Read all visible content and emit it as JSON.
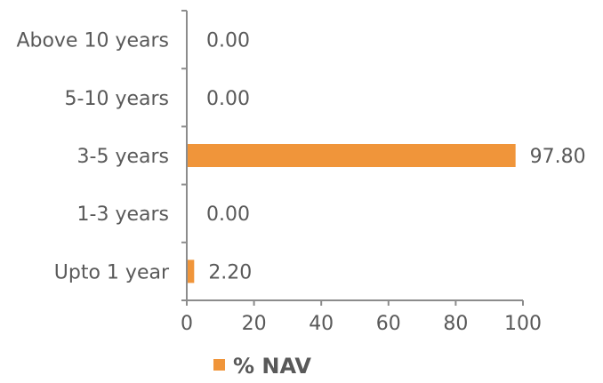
{
  "chart_data": {
    "type": "bar",
    "orientation": "horizontal",
    "categories": [
      "Above 10 years",
      "5-10 years",
      "3-5 years",
      "1-3 years",
      "Upto 1 year"
    ],
    "series": [
      {
        "name": "% NAV",
        "values": [
          0.0,
          0.0,
          97.8,
          0.0,
          2.2
        ],
        "value_labels": [
          "0.00",
          "0.00",
          "97.80",
          "0.00",
          "2.20"
        ],
        "color": "#F0953A"
      }
    ],
    "xlim": [
      0,
      100
    ],
    "x_ticks": [
      0,
      20,
      40,
      60,
      80,
      100
    ],
    "grid": false,
    "legend_position": "bottom",
    "legend": {
      "label": "% NAV",
      "color": "#F0953A"
    }
  }
}
